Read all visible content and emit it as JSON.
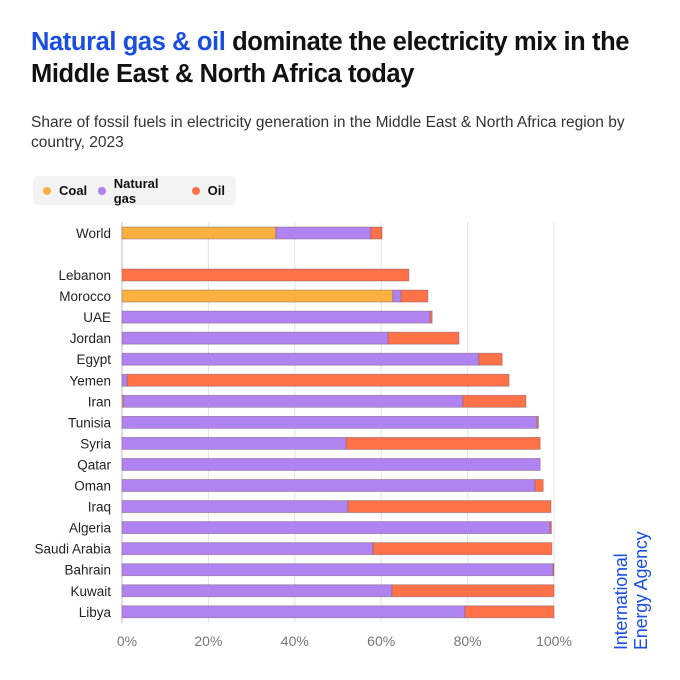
{
  "header": {
    "title_highlight": "Natural gas & oil",
    "title_rest": " dominate the electricity mix in the Middle East & North Africa today",
    "subtitle": "Share of fossil fuels in electricity generation in the Middle East & North Africa region by country, 2023"
  },
  "branding": {
    "line1": "International",
    "line2": "Energy Agency"
  },
  "colors": {
    "coal": "#fbb040",
    "natural_gas": "#b084f0",
    "oil": "#ff7247",
    "accent": "#1a4ee0"
  },
  "chart_data": {
    "type": "bar",
    "orientation": "horizontal",
    "stacked": true,
    "title": "Natural gas & oil dominate the electricity mix in the Middle East & North Africa today",
    "subtitle": "Share of fossil fuels in electricity generation in the Middle East & North Africa region by country, 2023",
    "xlabel": "",
    "ylabel": "",
    "xlim": [
      0,
      100
    ],
    "x_ticks": [
      "0%",
      "20%",
      "40%",
      "60%",
      "80%",
      "100%"
    ],
    "grid": true,
    "legend_position": "top-left",
    "categories": [
      "World",
      "Lebanon",
      "Morocco",
      "UAE",
      "Jordan",
      "Egypt",
      "Yemen",
      "Iran",
      "Tunisia",
      "Syria",
      "Qatar",
      "Oman",
      "Iraq",
      "Algeria",
      "Saudi Arabia",
      "Bahrain",
      "Kuwait",
      "Libya"
    ],
    "series": [
      {
        "name": "Coal",
        "key": "coal",
        "values": [
          35.6,
          0,
          62.7,
          0,
          0,
          0,
          0,
          0.3,
          0,
          0,
          0,
          0,
          0,
          0,
          0,
          0,
          0,
          0
        ]
      },
      {
        "name": "Natural gas",
        "key": "natural_gas",
        "values": [
          22.0,
          0,
          1.9,
          71.3,
          61.6,
          82.6,
          1.2,
          78.6,
          96.1,
          51.9,
          96.8,
          95.6,
          52.3,
          99.1,
          58.1,
          99.8,
          62.5,
          79.4
        ]
      },
      {
        "name": "Oil",
        "key": "oil",
        "values": [
          2.6,
          66.4,
          6.2,
          0.5,
          16.4,
          5.4,
          88.4,
          14.6,
          0.3,
          44.9,
          0,
          1.9,
          47.0,
          0.3,
          41.4,
          0.2,
          37.5,
          20.6
        ]
      }
    ]
  }
}
